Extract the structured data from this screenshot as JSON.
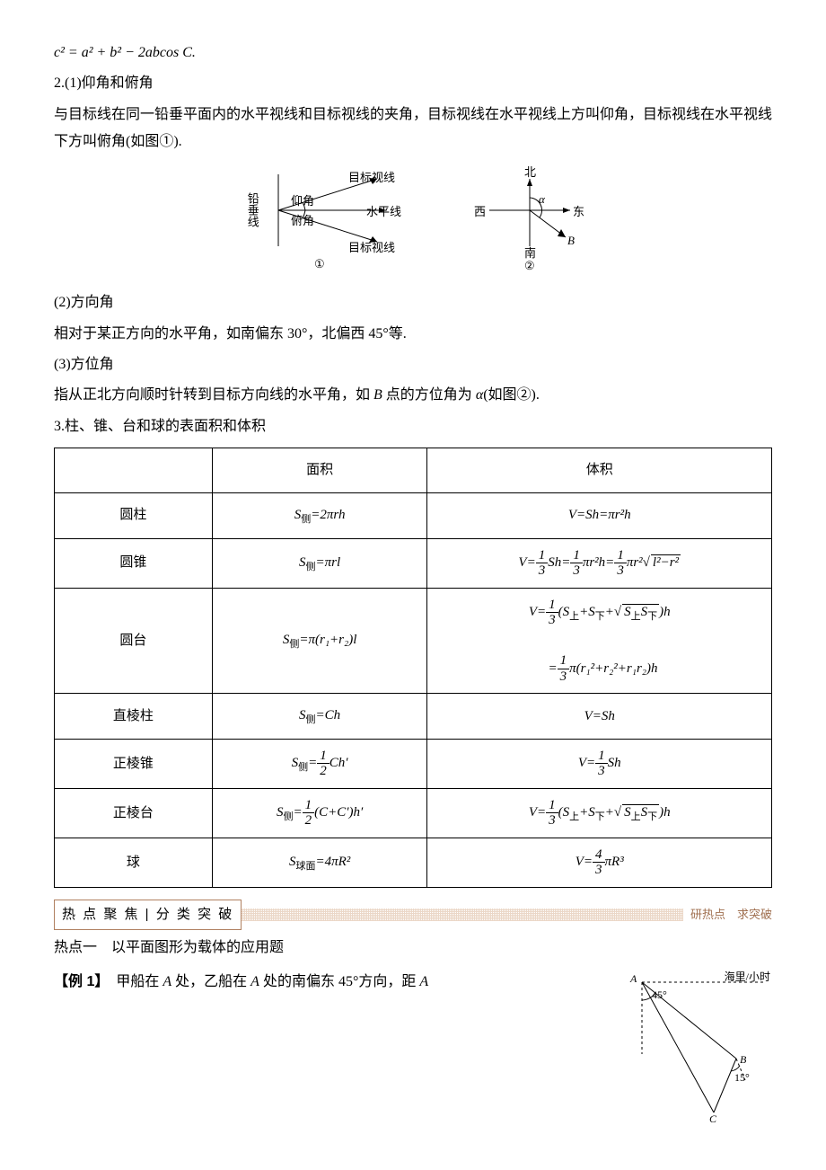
{
  "eq_cosine": "c² = a² + b² − 2abcos C.",
  "sec2_head": "2.(1)仰角和俯角",
  "sec2_p1": "与目标线在同一铅垂平面内的水平视线和目标视线的夹角，目标视线在水平视线上方叫仰角，目标视线在水平视线下方叫俯角(如图①).",
  "diag1": {
    "lead": "铅垂线",
    "sight_up": "目标视线",
    "sight_down": "目标视线",
    "horiz": "水平线",
    "up_angle": "仰角",
    "down_angle": "俯角",
    "label": "①"
  },
  "diag2": {
    "n": "北",
    "s": "南",
    "e": "东",
    "w": "西",
    "alpha": "α",
    "B": "B",
    "label": "②"
  },
  "sec2_2_head": "(2)方向角",
  "sec2_2_p": "相对于某正方向的水平角，如南偏东 30°，北偏西 45°等.",
  "sec2_3_head": "(3)方位角",
  "sec2_3_p_a": "指从正北方向顺时针转到目标方向线的水平角，如 ",
  "sec2_3_p_b": " 点的方位角为 ",
  "sec2_3_p_c": "(如图②).",
  "sec2_3_B": "B",
  "sec2_3_alpha": "α",
  "sec3_head": "3.柱、锥、台和球的表面积和体积",
  "table": {
    "h_area": "面积",
    "h_vol": "体积",
    "rows": [
      {
        "name": "圆柱",
        "area_html": "<span class='formula'>S<span class='sub'>侧</span>=2πrh</span>",
        "vol_html": "<span class='formula'>V=Sh=πr²h</span>"
      },
      {
        "name": "圆锥",
        "area_html": "<span class='formula'>S<span class='sub'>侧</span>=πrl</span>",
        "vol_html": "<span class='formula'>V=<span class='frac'><span class='n'>1</span><span class='d'>3</span></span>Sh=<span class='frac'><span class='n'>1</span><span class='d'>3</span></span>πr²h=<span class='frac'><span class='n'>1</span><span class='d'>3</span></span>πr²√<span class='sqrt'>l²−r²</span></span>"
      },
      {
        "name": "圆台",
        "area_html": "<span class='formula'>S<span class='sub'>侧</span>=π(r₁+r₂)l</span>",
        "vol_html": "<span class='formula'>V=<span class='frac'><span class='n'>1</span><span class='d'>3</span></span>(S<span class='sub'>上</span>+S<span class='sub'>下</span>+√<span class='sqrt'>S<span class='sub'>上</span>S<span class='sub'>下</span></span>)h<br><br>&nbsp;&nbsp;=<span class='frac'><span class='n'>1</span><span class='d'>3</span></span>π(r₁²+r₂²+r₁r₂)h</span>"
      },
      {
        "name": "直棱柱",
        "area_html": "<span class='formula'>S<span class='sub'>侧</span>=Ch</span>",
        "vol_html": "<span class='formula'>V=Sh</span>"
      },
      {
        "name": "正棱锥",
        "area_html": "<span class='formula'>S<span class='sub'>侧</span>=<span class='frac'><span class='n'>1</span><span class='d'>2</span></span>Ch′</span>",
        "vol_html": "<span class='formula'>V=<span class='frac'><span class='n'>1</span><span class='d'>3</span></span>Sh</span>"
      },
      {
        "name": "正棱台",
        "area_html": "<span class='formula'>S<span class='sub'>侧</span>=<span class='frac'><span class='n'>1</span><span class='d'>2</span></span>(C+C′)h′</span>",
        "vol_html": "<span class='formula'>V=<span class='frac'><span class='n'>1</span><span class='d'>3</span></span>(S<span class='sub'>上</span>+S<span class='sub'>下</span>+√<span class='sqrt'>S<span class='sub'>上</span>S<span class='sub'>下</span></span>)h</span>"
      },
      {
        "name": "球",
        "area_html": "<span class='formula'>S<span class='sub'>球面</span>=4πR²</span>",
        "vol_html": "<span class='formula'>V=<span class='frac'><span class='n'>4</span><span class='d'>3</span></span>πR³</span>"
      }
    ]
  },
  "banner_left": "热 点 聚 焦 | 分 类 突 破",
  "banner_right": "研热点　求突破",
  "hot1": "热点一　以平面图形为载体的应用题",
  "ex1_label": "【例 1】",
  "ex1_text_a": "　甲船在 ",
  "ex1_text_b": " 处，乙船在 ",
  "ex1_text_c": " 处的南偏东 45°方向，距 ",
  "ex1_A": "A",
  "ex1_fig": {
    "unit": "海里/小时",
    "A": "A",
    "B": "B",
    "C": "C",
    "a45": "45°",
    "a15": "15°"
  }
}
